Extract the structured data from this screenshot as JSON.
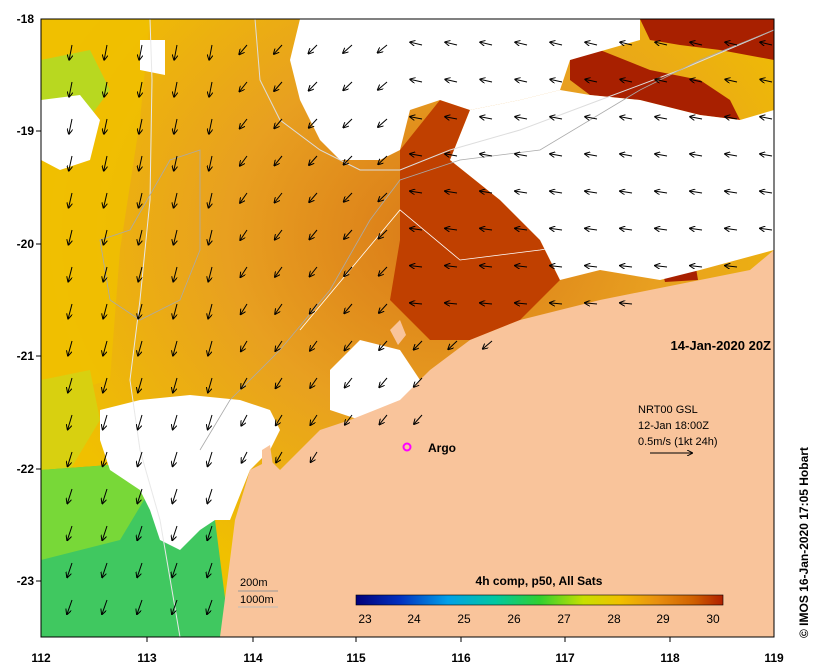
{
  "map": {
    "date_label": "14-Jan-2020 20Z",
    "current_legend": {
      "line1": "NRT00 GSL",
      "line2": "12-Jan 18:00Z",
      "line3": "0.5m/s (1kt 24h)"
    },
    "argo_label": "Argo",
    "colorbar_title": "4h comp, p50, All Sats",
    "colorbar_ticks": [
      "23",
      "24",
      "25",
      "26",
      "27",
      "28",
      "29",
      "30"
    ],
    "depth_legend": [
      "200m",
      "1000m"
    ],
    "credit": "© IMOS 16-Jan-2020 17:05 Hobart",
    "lon_ticks": [
      "112",
      "113",
      "114",
      "115",
      "116",
      "117",
      "118",
      "119"
    ],
    "lat_ticks": [
      "-18",
      "-19",
      "-20",
      "-21",
      "-22",
      "-23"
    ],
    "colors": {
      "land": "#f9c49b",
      "cloud": "#ffffff",
      "argo": "#ff00ff",
      "sst_scale": [
        "#00007a",
        "#0040c8",
        "#00a0e8",
        "#00c8a0",
        "#30d030",
        "#c8e000",
        "#f0c000",
        "#e89010",
        "#d06000",
        "#b02000"
      ]
    }
  }
}
